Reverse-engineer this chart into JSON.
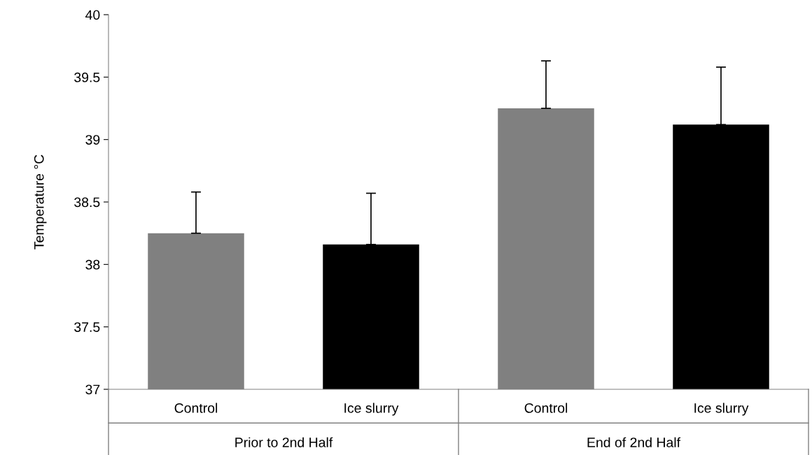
{
  "chart_data": {
    "type": "bar",
    "categories": [
      "Control",
      "Ice slurry",
      "Control",
      "Ice slurry"
    ],
    "values": [
      38.25,
      38.16,
      39.25,
      39.12
    ],
    "colors": [
      "#808080",
      "#000000",
      "#808080",
      "#000000"
    ],
    "errors": [
      [
        38.25,
        38.58
      ],
      [
        38.16,
        38.57
      ],
      [
        39.25,
        39.63
      ],
      [
        39.12,
        39.58
      ]
    ],
    "ylabel": "Temperature °C",
    "ylim": [
      37,
      40
    ],
    "yticks": [
      37,
      37.5,
      38,
      38.5,
      39,
      39.5,
      40
    ],
    "annotations": [
      "Prior to 2nd Half",
      "End of 2nd Half"
    ],
    "grid": false,
    "legend": false
  }
}
